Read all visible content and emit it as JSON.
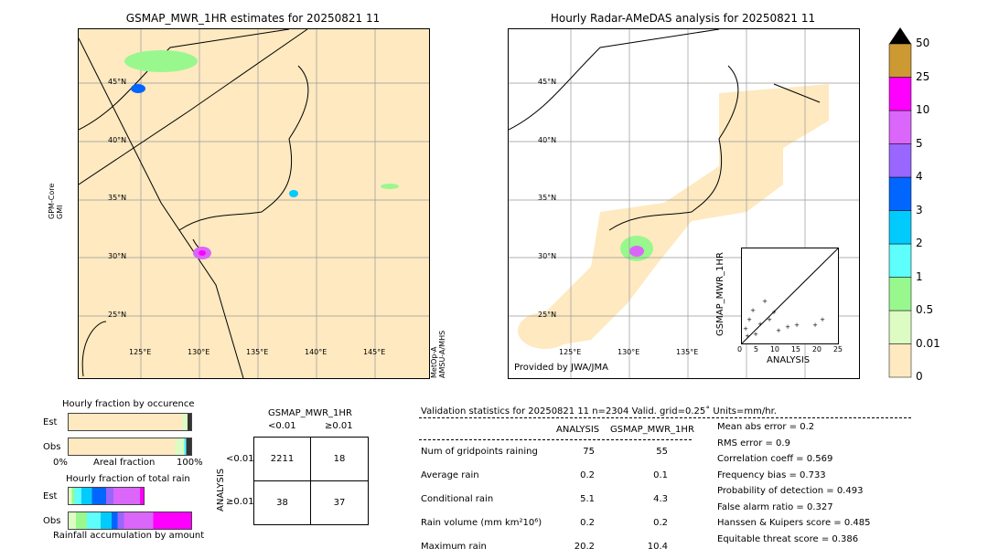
{
  "left_map": {
    "title": "GSMAP_MWR_1HR estimates for 20250821 11",
    "left_label": "GPM-Core\nGMI",
    "left_label_lines": [
      "GPM-Core",
      "GMI"
    ],
    "right_label_lines": [
      "MetOp-A",
      "AMSU-A/MHS"
    ],
    "lat_labels": [
      "45°N",
      "40°N",
      "35°N",
      "30°N",
      "25°N"
    ],
    "lon_labels": [
      "125°E",
      "130°E",
      "135°E",
      "140°E",
      "145°E"
    ]
  },
  "right_map": {
    "title": "Hourly Radar-AMeDAS analysis for 20250821 11",
    "lat_labels": [
      "45°N",
      "40°N",
      "35°N",
      "30°N",
      "25°N"
    ],
    "lon_labels": [
      "125°E",
      "130°E",
      "135°E"
    ],
    "credit": "Provided by JWA/JMA",
    "inset": {
      "xlabel": "ANALYSIS",
      "ylabel": "GSMAP_MWR_1HR",
      "ticks": [
        "0",
        "5",
        "10",
        "15",
        "20",
        "25"
      ]
    }
  },
  "colorbar": {
    "labels": [
      "0",
      "0.01",
      "0.5",
      "1",
      "2",
      "3",
      "4",
      "5",
      "10",
      "25",
      "50"
    ],
    "colors": [
      "#fee9c0",
      "#dcfcc4",
      "#98f88e",
      "#5dfefc",
      "#00cbfc",
      "#0066ff",
      "#9966ff",
      "#da66fa",
      "#ff00ff",
      "#cc9933"
    ],
    "extend_color": "#000000"
  },
  "occurrence": {
    "title": "Hourly fraction by occurence",
    "rows": [
      "Est",
      "Obs"
    ],
    "x_left": "0%",
    "x_mid": "Areal fraction",
    "x_right": "100%"
  },
  "total_rain": {
    "title": "Hourly fraction of total rain",
    "rows": [
      "Est",
      "Obs"
    ],
    "xlabel": "Rainfall accumulation by amount"
  },
  "contingency": {
    "col_title": "GSMAP_MWR_1HR",
    "col_labels": [
      "<0.01",
      "≥0.01"
    ],
    "row_title": "ANALYSIS",
    "row_labels": [
      "<0.01",
      "≥0.01"
    ],
    "cells": [
      [
        "2211",
        "18"
      ],
      [
        "38",
        "37"
      ]
    ]
  },
  "validation": {
    "header": "Validation statistics for 20250821 11  n=2304 Valid. grid=0.25˚ Units=mm/hr.",
    "col_headers": [
      "ANALYSIS",
      "GSMAP_MWR_1HR"
    ],
    "rows": [
      {
        "label": "Num of gridpoints raining",
        "analysis": "75",
        "gsmap": "55"
      },
      {
        "label": "Average rain",
        "analysis": "0.2",
        "gsmap": "0.1"
      },
      {
        "label": "Conditional rain",
        "analysis": "5.1",
        "gsmap": "4.3"
      },
      {
        "label": "Rain volume (mm km²10⁶)",
        "analysis": "0.2",
        "gsmap": "0.2"
      },
      {
        "label": "Maximum rain",
        "analysis": "20.2",
        "gsmap": "10.4"
      }
    ],
    "scores": [
      "Mean abs error =    0.2",
      "RMS error =    0.9",
      "Correlation coeff =  0.569",
      "Frequency bias =  0.733",
      "Probability of detection =  0.493",
      "False alarm ratio =  0.327",
      "Hanssen & Kuipers score =  0.485",
      "Equitable threat score =  0.386"
    ]
  }
}
